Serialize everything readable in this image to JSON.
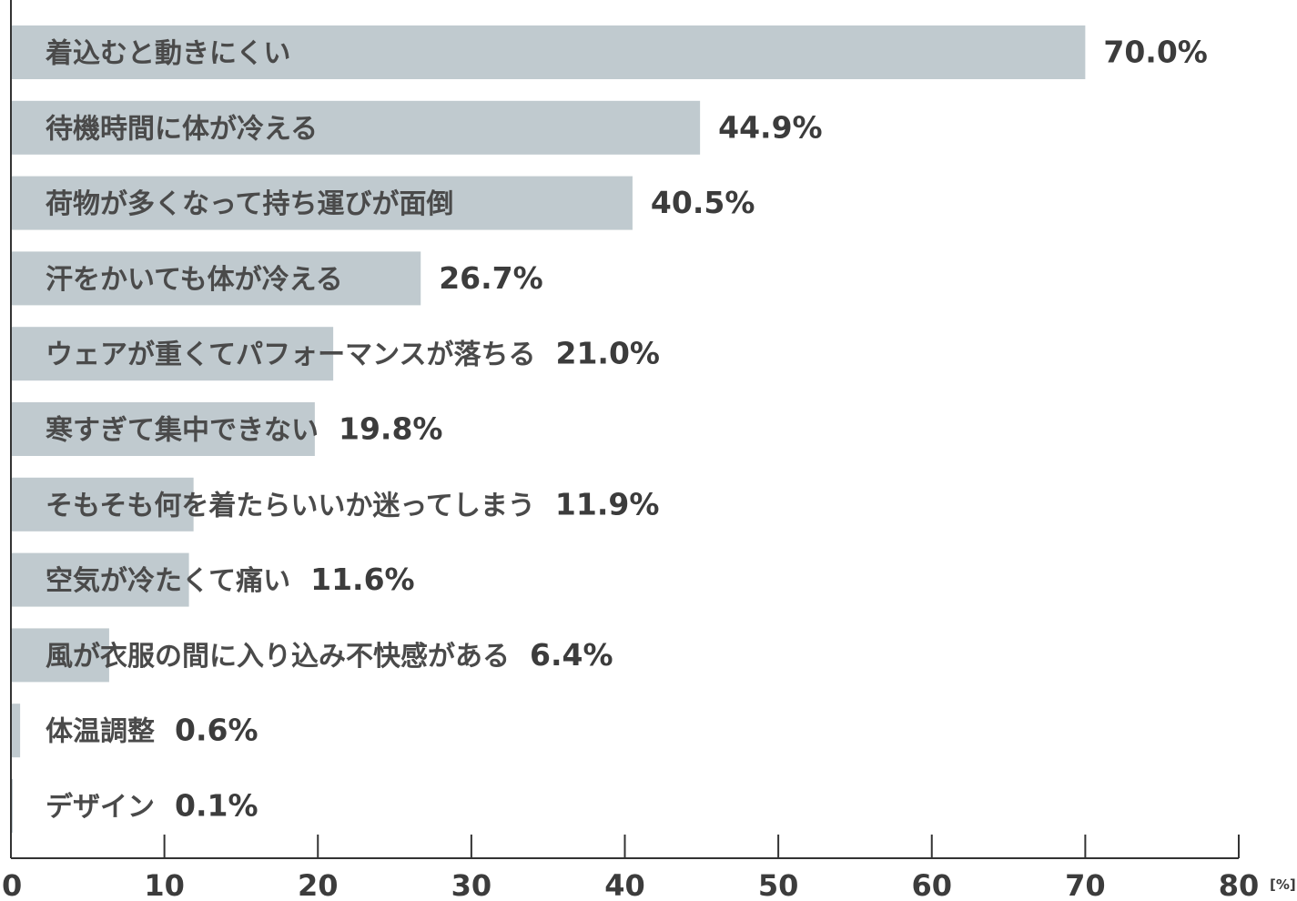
{
  "chart_data": {
    "type": "bar",
    "orientation": "horizontal",
    "categories": [
      "着込むと動きにくい",
      "待機時間に体が冷える",
      "荷物が多くなって持ち運びが面倒",
      "汗をかいても体が冷える",
      "ウェアが重くてパフォーマンスが落ちる",
      "寒すぎて集中できない",
      "そもそも何を着たらいいか迷ってしまう",
      "空気が冷たくて痛い",
      "風が衣服の間に入り込み不快感がある",
      "体温調整",
      "デザイン"
    ],
    "values": [
      70.0,
      44.9,
      40.5,
      26.7,
      21.0,
      19.8,
      11.9,
      11.6,
      6.4,
      0.6,
      0.1
    ],
    "value_labels": [
      "70.0%",
      "44.9%",
      "40.5%",
      "26.7%",
      "21.0%",
      "19.8%",
      "11.9%",
      "11.6%",
      "6.4%",
      "0.6%",
      "0.1%"
    ],
    "xlim": [
      0,
      80
    ],
    "xticks": [
      0,
      10,
      20,
      30,
      40,
      50,
      60,
      70,
      80
    ],
    "xticklabels": [
      "0",
      "10",
      "20",
      "30",
      "40",
      "50",
      "60",
      "70",
      "80"
    ],
    "xunit": "[%]",
    "bar_color": "#c0cacf",
    "grid": false
  }
}
